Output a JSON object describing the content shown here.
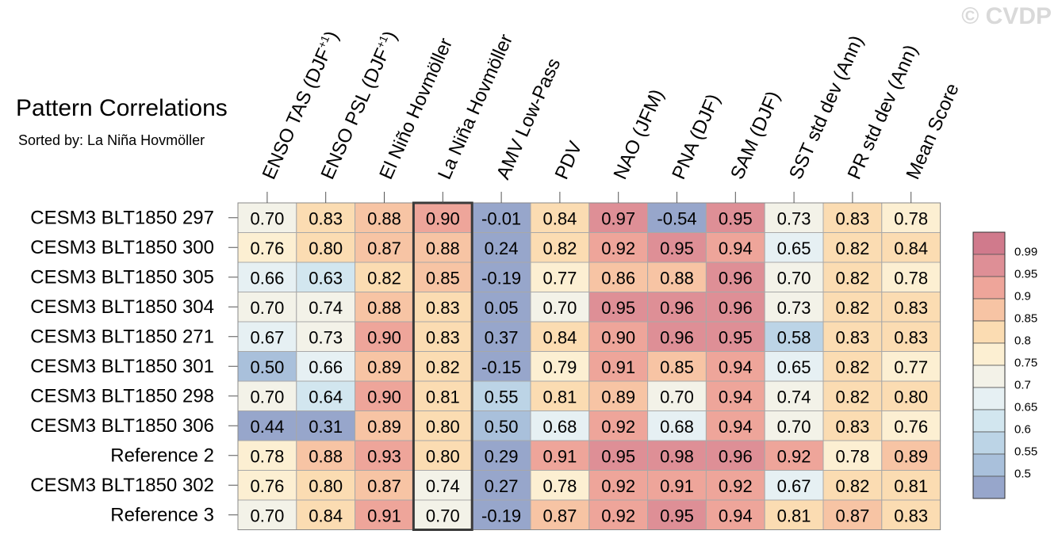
{
  "title": "Pattern Correlations",
  "subtitle": "Sorted by: La Niña Hovmöller",
  "watermark": "© CVDP",
  "chart_data": {
    "type": "heatmap",
    "columns": [
      {
        "label": "ENSO TAS (DJF",
        "sup": "+1",
        "close": ")"
      },
      {
        "label": "ENSO PSL (DJF",
        "sup": "+1",
        "close": ")"
      },
      {
        "label": "El Niño Hovmöller"
      },
      {
        "label": "La Niña Hovmöller"
      },
      {
        "label": "AMV Low-Pass"
      },
      {
        "label": "PDV"
      },
      {
        "label": "NAO (JFM)"
      },
      {
        "label": "PNA (DJF)"
      },
      {
        "label": "SAM (DJF)"
      },
      {
        "label": "SST std dev (Ann)"
      },
      {
        "label": "PR std dev (Ann)"
      },
      {
        "label": "Mean Score"
      }
    ],
    "highlighted_column": "La Niña Hovmöller",
    "rows": [
      {
        "label": "CESM3 BLT1850 297",
        "values": [
          "0.70",
          "0.83",
          "0.88",
          "0.90",
          "-0.01",
          "0.84",
          "0.97",
          "-0.54",
          "0.95",
          "0.73",
          "0.83",
          "0.78"
        ]
      },
      {
        "label": "CESM3 BLT1850 300",
        "values": [
          "0.76",
          "0.80",
          "0.87",
          "0.88",
          "0.24",
          "0.82",
          "0.92",
          "0.95",
          "0.94",
          "0.65",
          "0.82",
          "0.84"
        ]
      },
      {
        "label": "CESM3 BLT1850 305",
        "values": [
          "0.66",
          "0.63",
          "0.82",
          "0.85",
          "-0.19",
          "0.77",
          "0.86",
          "0.88",
          "0.96",
          "0.70",
          "0.82",
          "0.78"
        ]
      },
      {
        "label": "CESM3 BLT1850 304",
        "values": [
          "0.70",
          "0.74",
          "0.88",
          "0.83",
          "0.05",
          "0.70",
          "0.95",
          "0.96",
          "0.96",
          "0.73",
          "0.82",
          "0.83"
        ]
      },
      {
        "label": "CESM3 BLT1850 271",
        "values": [
          "0.67",
          "0.73",
          "0.90",
          "0.83",
          "0.37",
          "0.84",
          "0.90",
          "0.96",
          "0.95",
          "0.58",
          "0.83",
          "0.83"
        ]
      },
      {
        "label": "CESM3 BLT1850 301",
        "values": [
          "0.50",
          "0.66",
          "0.89",
          "0.82",
          "-0.15",
          "0.79",
          "0.91",
          "0.85",
          "0.94",
          "0.65",
          "0.82",
          "0.77"
        ]
      },
      {
        "label": "CESM3 BLT1850 298",
        "values": [
          "0.70",
          "0.64",
          "0.90",
          "0.81",
          "0.55",
          "0.81",
          "0.89",
          "0.70",
          "0.94",
          "0.74",
          "0.82",
          "0.80"
        ]
      },
      {
        "label": "CESM3 BLT1850 306",
        "values": [
          "0.44",
          "0.31",
          "0.89",
          "0.80",
          "0.50",
          "0.68",
          "0.92",
          "0.68",
          "0.94",
          "0.70",
          "0.83",
          "0.76"
        ]
      },
      {
        "label": "Reference 2",
        "values": [
          "0.78",
          "0.88",
          "0.93",
          "0.80",
          "0.29",
          "0.91",
          "0.95",
          "0.98",
          "0.96",
          "0.92",
          "0.78",
          "0.89"
        ]
      },
      {
        "label": "CESM3 BLT1850 302",
        "values": [
          "0.76",
          "0.80",
          "0.87",
          "0.74",
          "0.27",
          "0.78",
          "0.92",
          "0.91",
          "0.92",
          "0.67",
          "0.82",
          "0.81"
        ]
      },
      {
        "label": "Reference 3",
        "values": [
          "0.70",
          "0.84",
          "0.91",
          "0.70",
          "-0.19",
          "0.87",
          "0.92",
          "0.95",
          "0.94",
          "0.81",
          "0.87",
          "0.83"
        ]
      }
    ],
    "colorbar": {
      "labels": [
        "0.99",
        "0.95",
        "0.9",
        "0.85",
        "0.8",
        "0.75",
        "0.7",
        "0.65",
        "0.6",
        "0.55",
        "0.5"
      ],
      "thresholds": [
        0.5,
        0.55,
        0.6,
        0.65,
        0.7,
        0.75,
        0.8,
        0.85,
        0.9,
        0.95,
        0.99
      ],
      "colors": [
        "#97a6cb",
        "#a9c0db",
        "#bcd4e6",
        "#d2e6ef",
        "#e6f0f3",
        "#f3f2e8",
        "#fcefd2",
        "#fbdcb2",
        "#f7c4a4",
        "#eea59a",
        "#de8f96",
        "#d07a8c"
      ]
    }
  }
}
